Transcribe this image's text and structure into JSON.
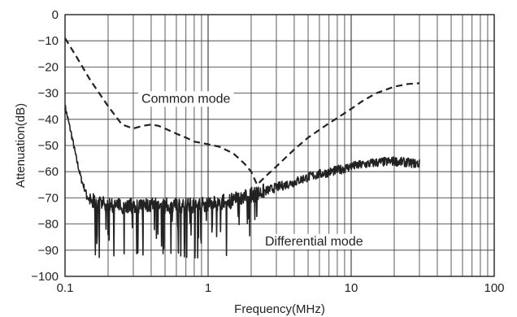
{
  "chart_data": {
    "type": "line",
    "title": "",
    "xlabel": "Frequency(MHz)",
    "ylabel": "Attenuation(dB)",
    "x_scale": "log",
    "xlim": [
      0.1,
      100
    ],
    "ylim": [
      -100,
      0
    ],
    "grid": true,
    "x_ticks": [
      {
        "value": 0.1,
        "label": "0.1"
      },
      {
        "value": 1,
        "label": "1"
      },
      {
        "value": 10,
        "label": "10"
      },
      {
        "value": 100,
        "label": "100"
      }
    ],
    "y_ticks": [
      0,
      -10,
      -20,
      -30,
      -40,
      -50,
      -60,
      -70,
      -80,
      -90,
      -100
    ],
    "y_tick_labels": [
      "0",
      "−10",
      "−20",
      "−30",
      "−40",
      "−50",
      "−60",
      "−70",
      "−80",
      "−90",
      "−100"
    ],
    "series": [
      {
        "name": "Common mode",
        "style": "dashed",
        "color": "#222222",
        "x": [
          0.1,
          0.12,
          0.15,
          0.2,
          0.25,
          0.3,
          0.35,
          0.4,
          0.45,
          0.5,
          0.6,
          0.7,
          0.8,
          1.0,
          1.2,
          1.5,
          1.8,
          2.0,
          2.2,
          2.5,
          3.0,
          3.5,
          4.0,
          5.0,
          6.0,
          7.0,
          8.0,
          10,
          12,
          15,
          20,
          25,
          30
        ],
        "values": [
          -9,
          -16,
          -25,
          -35,
          -42,
          -43.5,
          -42.5,
          -42,
          -42.5,
          -43.5,
          -45.5,
          -47,
          -48.5,
          -49.5,
          -50.5,
          -53,
          -57,
          -60,
          -65,
          -62,
          -58,
          -54.5,
          -51.5,
          -47,
          -44,
          -41.5,
          -39.5,
          -36,
          -33,
          -30,
          -27.5,
          -26.5,
          -26.2
        ]
      },
      {
        "name": "Differential mode",
        "style": "solid-noisy",
        "color": "#222222",
        "x": [
          0.1,
          0.11,
          0.12,
          0.13,
          0.14,
          0.15,
          0.17,
          0.2,
          0.3,
          0.5,
          0.7,
          1.0,
          1.5,
          2.0,
          2.5,
          3.0,
          4.0,
          5.0,
          6.0,
          8.0,
          10,
          15,
          20,
          30
        ],
        "values": [
          -35,
          -45,
          -55,
          -63,
          -68,
          -71,
          -72,
          -73,
          -73,
          -73,
          -73,
          -72.5,
          -71,
          -69,
          -67.5,
          -66,
          -64,
          -62,
          -61,
          -59.5,
          -58,
          -56.5,
          -56,
          -57
        ]
      }
    ],
    "annotations": [
      {
        "text": "Common mode",
        "x": 0.7,
        "y": -33
      },
      {
        "text": "Differential mode",
        "x": 5.5,
        "y": -87.5
      }
    ]
  }
}
